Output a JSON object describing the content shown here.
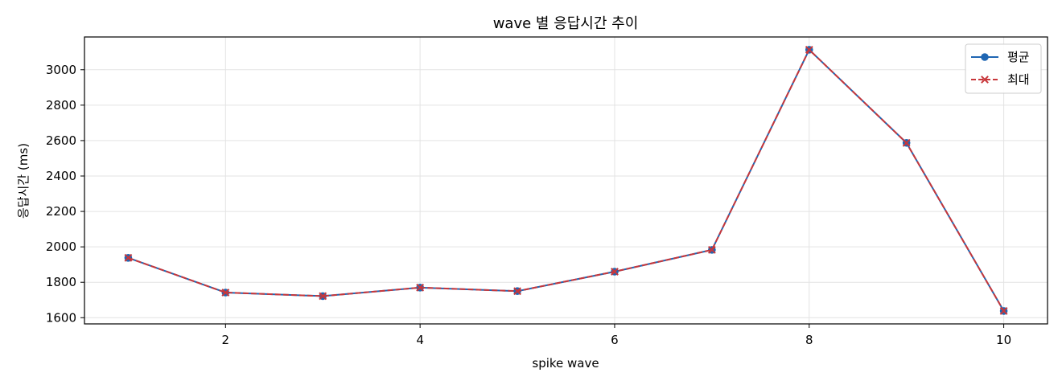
{
  "chart_data": {
    "type": "line",
    "title": "wave 별 응답시간 추이",
    "xlabel": "spike wave",
    "ylabel": "응답시간 (ms)",
    "x": [
      1,
      2,
      3,
      4,
      5,
      6,
      7,
      8,
      9,
      10
    ],
    "xlim": [
      0.55,
      10.45
    ],
    "ylim": [
      1565,
      3185
    ],
    "xticks": [
      2,
      4,
      6,
      8,
      10
    ],
    "yticks": [
      1600,
      1800,
      2000,
      2200,
      2400,
      2600,
      2800,
      3000
    ],
    "grid": true,
    "legend_position": "top-right",
    "series": [
      {
        "name": "평균",
        "values": [
          1938,
          1742,
          1722,
          1770,
          1750,
          1860,
          1983,
          3113,
          2587,
          1638
        ],
        "color": "#1f66b3",
        "marker": "circle",
        "line_style": "solid"
      },
      {
        "name": "최대",
        "values": [
          1938,
          1742,
          1722,
          1770,
          1750,
          1860,
          1983,
          3113,
          2587,
          1638
        ],
        "color": "#c8373b",
        "marker": "x",
        "line_style": "dashed"
      }
    ]
  }
}
